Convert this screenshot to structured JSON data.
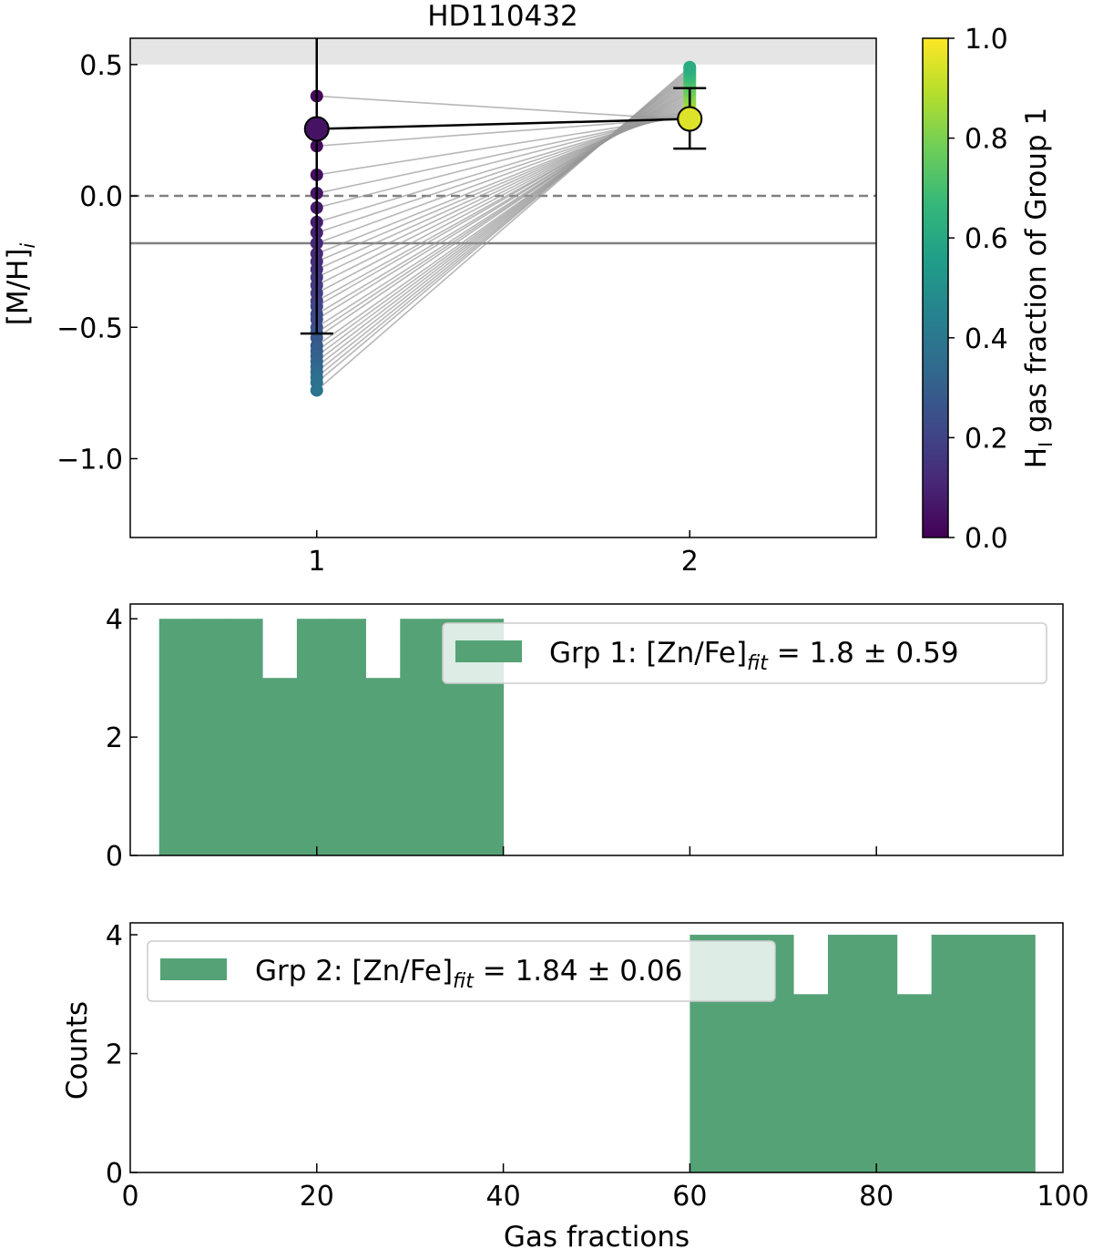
{
  "chart_data": [
    {
      "type": "scatter",
      "title": "HD110432",
      "ylabel": "[M/H]",
      "ylabel_sub": "i",
      "xlim": [
        0.5,
        2.5
      ],
      "ylim": [
        -1.3,
        0.6
      ],
      "x_ticks": [
        {
          "v": 1,
          "label": "1"
        },
        {
          "v": 2,
          "label": "2"
        }
      ],
      "y_ticks": [
        {
          "v": 0.5,
          "label": "0.5"
        },
        {
          "v": 0.0,
          "label": "0.0"
        },
        {
          "v": -0.5,
          "label": "−0.5"
        },
        {
          "v": -1.0,
          "label": "−1.0"
        }
      ],
      "shaded_band": [
        0.5,
        0.6
      ],
      "dashed_line": 0.0,
      "solid_line": -0.18,
      "group_means": [
        {
          "x": 1,
          "y": 0.255,
          "err_low": -0.524,
          "err_high": 1.03,
          "color_value": 0.05
        },
        {
          "x": 2,
          "y": 0.293,
          "err_low": 0.18,
          "err_high": 0.41,
          "color_value": 0.95
        }
      ],
      "pairs": {
        "gas_fraction": [
          0.02,
          0.03,
          0.04,
          0.06,
          0.07,
          0.08,
          0.09,
          0.11,
          0.12,
          0.13,
          0.14,
          0.16,
          0.17,
          0.18,
          0.19,
          0.21,
          0.22,
          0.23,
          0.24,
          0.26,
          0.27,
          0.28,
          0.29,
          0.31,
          0.32,
          0.33,
          0.34,
          0.36,
          0.37,
          0.38
        ],
        "group1": [
          0.38,
          0.19,
          0.08,
          0.01,
          -0.045,
          -0.1,
          -0.14,
          -0.18,
          -0.22,
          -0.25,
          -0.28,
          -0.31,
          -0.34,
          -0.37,
          -0.4,
          -0.42,
          -0.45,
          -0.47,
          -0.5,
          -0.52,
          -0.54,
          -0.57,
          -0.59,
          -0.61,
          -0.63,
          -0.65,
          -0.67,
          -0.69,
          -0.71,
          -0.74
        ],
        "group2": [
          0.29,
          0.297,
          0.304,
          0.311,
          0.318,
          0.325,
          0.331,
          0.338,
          0.345,
          0.352,
          0.359,
          0.366,
          0.373,
          0.38,
          0.387,
          0.394,
          0.4,
          0.407,
          0.414,
          0.421,
          0.428,
          0.435,
          0.442,
          0.449,
          0.456,
          0.463,
          0.469,
          0.476,
          0.483,
          0.49
        ]
      },
      "colorbar": {
        "colormap": "viridis",
        "range": [
          0,
          1
        ],
        "label_pre": "H",
        "label_sub": "I",
        "label_post": " gas fraction of Group 1",
        "ticks": [
          {
            "v": 0.0,
            "label": "0.0"
          },
          {
            "v": 0.2,
            "label": "0.2"
          },
          {
            "v": 0.4,
            "label": "0.4"
          },
          {
            "v": 0.6,
            "label": "0.6"
          },
          {
            "v": 0.8,
            "label": "0.8"
          },
          {
            "v": 1.0,
            "label": "1.0"
          }
        ]
      }
    },
    {
      "type": "bar",
      "xlim": [
        0,
        100
      ],
      "ylim": [
        0,
        4.25
      ],
      "y_ticks": [
        {
          "v": 0,
          "label": "0"
        },
        {
          "v": 2,
          "label": "2"
        },
        {
          "v": 4,
          "label": "4"
        }
      ],
      "bin_edges": [
        3.1,
        6.79,
        10.48,
        14.17,
        17.86,
        21.55,
        25.24,
        28.93,
        32.62,
        36.31,
        40.0
      ],
      "counts": [
        4,
        4,
        4,
        3,
        4,
        4,
        3,
        4,
        4,
        4
      ],
      "color": "#55a277",
      "legend": {
        "pre": "Grp 1: [Zn/Fe]",
        "sub": "fit",
        "post": " = 1.8 ± 0.59",
        "placement": "upper right"
      }
    },
    {
      "type": "bar",
      "xlabel": "Gas fractions",
      "ylabel": "Counts",
      "xlim": [
        0,
        100
      ],
      "ylim": [
        0,
        4.2
      ],
      "x_ticks": [
        {
          "v": 0,
          "label": "0"
        },
        {
          "v": 20,
          "label": "20"
        },
        {
          "v": 40,
          "label": "40"
        },
        {
          "v": 60,
          "label": "60"
        },
        {
          "v": 80,
          "label": "80"
        },
        {
          "v": 100,
          "label": "100"
        }
      ],
      "y_ticks": [
        {
          "v": 0,
          "label": "0"
        },
        {
          "v": 2,
          "label": "2"
        },
        {
          "v": 4,
          "label": "4"
        }
      ],
      "bin_edges": [
        60,
        63.7,
        67.4,
        71.1,
        74.8,
        78.5,
        82.2,
        85.9,
        89.6,
        93.3,
        97.0
      ],
      "counts": [
        4,
        4,
        4,
        3,
        4,
        4,
        3,
        4,
        4,
        4
      ],
      "color": "#55a277",
      "legend": {
        "pre": "Grp 2: [Zn/Fe]",
        "sub": "fit",
        "post": " = 1.84 ± 0.06",
        "placement": "upper left"
      }
    }
  ]
}
